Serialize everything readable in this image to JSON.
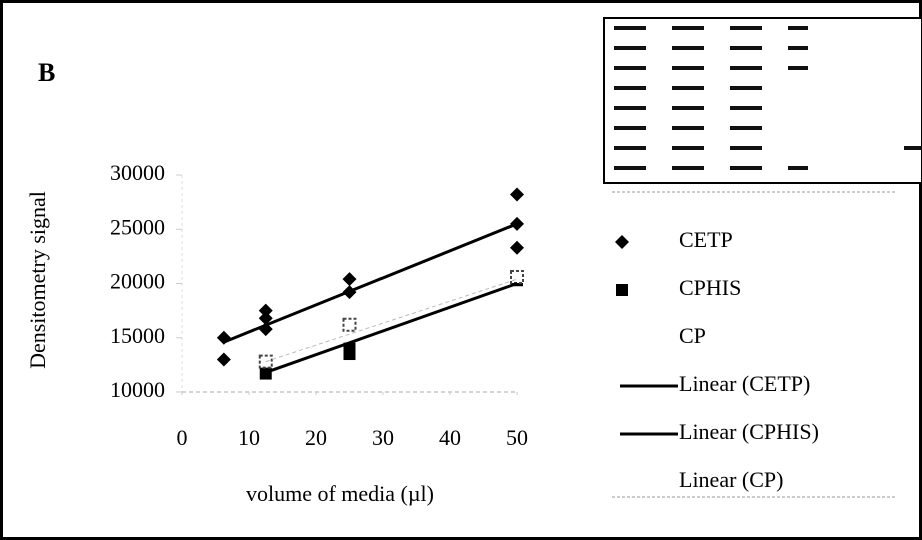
{
  "chart_data": {
    "type": "scatter",
    "panel_label": "B",
    "y_label": "Densitometry signal",
    "x_label": "volume of media (µl)",
    "xlim": [
      0,
      50
    ],
    "xticks": [
      0,
      10,
      20,
      30,
      40,
      50
    ],
    "ylim": [
      10000,
      30000
    ],
    "yticks": [
      10000,
      15000,
      20000,
      25000,
      30000
    ],
    "series": [
      {
        "name": "CETP",
        "marker": "diamond",
        "color": "#000000",
        "x": [
          6.25,
          6.25,
          12.5,
          12.5,
          12.5,
          25,
          25,
          50,
          50,
          50
        ],
        "values": [
          15000,
          13000,
          17500,
          16800,
          15800,
          20400,
          19200,
          28200,
          25500,
          23300
        ]
      },
      {
        "name": "CPHIS",
        "marker": "square",
        "color": "#000000",
        "x": [
          12.5,
          25,
          25,
          50
        ],
        "values": [
          11700,
          13500,
          14000,
          20300
        ]
      },
      {
        "name": "CP",
        "marker": "hollow-square",
        "color": "#444444",
        "x": [
          12.5,
          25,
          50
        ],
        "values": [
          12800,
          16200,
          20600
        ]
      },
      {
        "name": "Linear (CETP)",
        "marker": "line",
        "color": "#000000",
        "x": [
          6.25,
          50
        ],
        "values": [
          14600,
          25500
        ]
      },
      {
        "name": "Linear (CPHIS)",
        "marker": "line",
        "color": "#000000",
        "x": [
          12.5,
          50
        ],
        "values": [
          11800,
          20000
        ]
      },
      {
        "name": "Linear (CP)",
        "marker": "dashed-line",
        "color": "#bbbbbb",
        "x": [
          12.5,
          50
        ],
        "values": [
          12800,
          20400
        ]
      }
    ]
  }
}
